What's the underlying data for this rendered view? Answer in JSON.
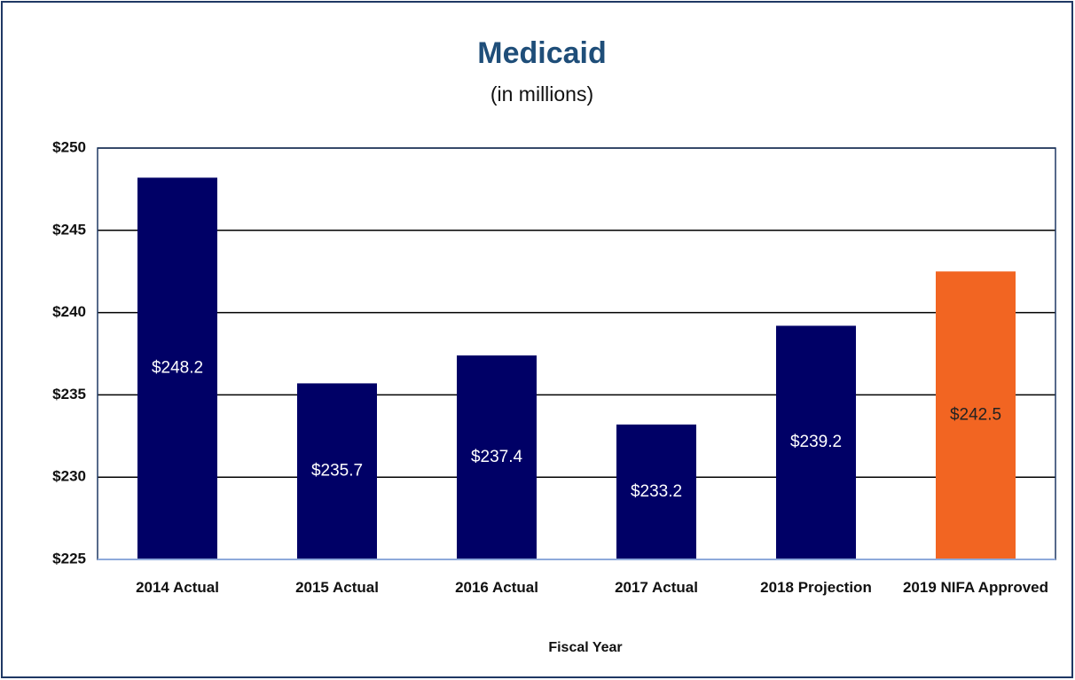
{
  "chart_data": {
    "type": "bar",
    "title": "Medicaid",
    "subtitle": "(in millions)",
    "x_label": "Fiscal Year",
    "categories": [
      "2014 Actual",
      "2015 Actual",
      "2016 Actual",
      "2017 Actual",
      "2018 Projection",
      "2019 NIFA Approved"
    ],
    "values": [
      248.2,
      235.7,
      237.4,
      233.2,
      239.2,
      242.5
    ],
    "value_labels": [
      "$248.2",
      "$235.7",
      "$237.4",
      "$233.2",
      "$239.2",
      "$242.5"
    ],
    "colors": [
      "#000066",
      "#000066",
      "#000066",
      "#000066",
      "#000066",
      "#f26522"
    ],
    "label_colors": [
      "#ffffff",
      "#ffffff",
      "#ffffff",
      "#ffffff",
      "#ffffff",
      "#222222"
    ],
    "ylim": [
      225,
      250
    ],
    "yticks": [
      {
        "value": 225,
        "label": "$225"
      },
      {
        "value": 230,
        "label": "$230"
      },
      {
        "value": 235,
        "label": "$235"
      },
      {
        "value": 240,
        "label": "$240"
      },
      {
        "value": 245,
        "label": "$245"
      },
      {
        "value": 250,
        "label": "$250"
      }
    ],
    "grid": true
  }
}
